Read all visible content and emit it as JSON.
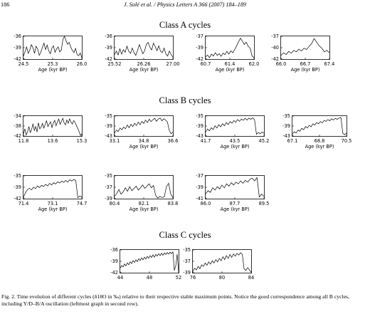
{
  "header": {
    "page_number": "186",
    "running_title": "J. Solé et al. / Physics Letters A 366 (2007) 184–189"
  },
  "sections": [
    {
      "title": "Class A cycles"
    },
    {
      "title": "Class B cycles"
    },
    {
      "title": "Class C cycles"
    }
  ],
  "caption": "Fig. 2. Time evolution of different cycles (δ18O in ‰) relative to their respective stable maximum points. Notice the good correspondence among all B cycles, including Y/D–B/A oscillation (leftmost graph in second row).",
  "chart_data": [
    {
      "type": "line",
      "class": "A",
      "xlabel": "Age (kyr BP)",
      "xticks": [
        "24.5",
        "25.3",
        "26.0"
      ],
      "yticks": [
        "-36",
        "-39",
        "-42"
      ],
      "xlim": [
        24.5,
        26.0
      ],
      "ylim": [
        -42,
        -36
      ],
      "values": [
        -41.2,
        -40,
        -38.8,
        -40.5,
        -39.6,
        -38.2,
        -39,
        -40.5,
        -38.6,
        -39.4,
        -41,
        -40.2,
        -38.9,
        -37.8,
        -39.5,
        -38.3,
        -39.8,
        -40.6,
        -39.1,
        -38.5,
        -40.2,
        -39.3,
        -38.8,
        -40.1,
        -39.6,
        -36.8,
        -35.6,
        -37.2,
        -38.1,
        -37.6,
        -38.9,
        -39.7,
        -40.3,
        -39.2,
        -40.8,
        -41.1,
        -40.4,
        -41.6
      ]
    },
    {
      "type": "line",
      "class": "A",
      "xlabel": "Age (kyr BP)",
      "xticks": [
        "25.52",
        "26.26",
        "27.00"
      ],
      "yticks": [
        "-36",
        "-39",
        "-42"
      ],
      "xlim": [
        25.52,
        27.0
      ],
      "ylim": [
        -42,
        -36
      ],
      "values": [
        -40.8,
        -39.9,
        -40.9,
        -39.3,
        -40.7,
        -39.5,
        -40.2,
        -38.6,
        -39.9,
        -40.5,
        -39.1,
        -40.3,
        -41,
        -39.7,
        -38.2,
        -39.4,
        -40.6,
        -39.8,
        -38.1,
        -37.6,
        -38.9,
        -39.6,
        -37.8,
        -38.7,
        -39.8,
        -38.5,
        -39.9,
        -40.3,
        -39.1,
        -40.6,
        -41.2,
        -39.9,
        -40.8,
        -41.5
      ]
    },
    {
      "type": "line",
      "class": "A",
      "xlabel": "Age (kyr BP)",
      "xticks": [
        "60.7",
        "61.4",
        "62.0"
      ],
      "yticks": [
        "-37",
        "-39",
        "-42"
      ],
      "xlim": [
        60.7,
        62.0
      ],
      "ylim": [
        -42,
        -37
      ],
      "values": [
        -41.5,
        -41.1,
        -41.7,
        -40.9,
        -41.3,
        -40.6,
        -41.2,
        -40.8,
        -41.4,
        -40.7,
        -41,
        -40.3,
        -40.9,
        -40.2,
        -40.6,
        -39.9,
        -39.1,
        -38.2,
        -37.4,
        -38.1,
        -38.8,
        -38.3,
        -39.2,
        -39.6,
        -41.3,
        -41.7
      ]
    },
    {
      "type": "line",
      "class": "A",
      "xlabel": "Age (kyr BP)",
      "xticks": [
        "66.0",
        "66.7",
        "67.4"
      ],
      "yticks": [
        "-37",
        "-40",
        "-42"
      ],
      "xlim": [
        66.0,
        67.4
      ],
      "ylim": [
        -42,
        -37
      ],
      "values": [
        -41.2,
        -40.6,
        -41,
        -40.3,
        -40.7,
        -40.1,
        -40.4,
        -39.8,
        -40.2,
        -39.6,
        -39.9,
        -39.2,
        -38.6,
        -37.5,
        -38.3,
        -39.1,
        -39.6,
        -40.4,
        -40.1,
        -40.6
      ]
    },
    {
      "type": "line",
      "class": "B",
      "xlabel": "",
      "xticks": [
        "11.8",
        "13.6",
        "15.3"
      ],
      "yticks": [
        "-34",
        "-38",
        "-42"
      ],
      "xlim": [
        11.8,
        15.3
      ],
      "ylim": [
        -42,
        -34
      ],
      "values": [
        -41.2,
        -39.1,
        -41.6,
        -40.3,
        -38.2,
        -40.6,
        -39.4,
        -37.1,
        -39.8,
        -38.2,
        -40.4,
        -36.7,
        -39.1,
        -38.5,
        -36.9,
        -38.8,
        -37.4,
        -35.9,
        -38.2,
        -37.1,
        -36.3,
        -38.6,
        -36.8,
        -35.7,
        -37.9,
        -36.4,
        -35.2,
        -37.3,
        -36.1,
        -34.9,
        -36.8,
        -37.5,
        -35.6,
        -36.9,
        -35.1,
        -36.4,
        -37.2,
        -35.8,
        -36.5,
        -37.8,
        -38.9,
        -40.3,
        -41.8,
        -41.1
      ]
    },
    {
      "type": "line",
      "class": "B",
      "xlabel": "Age (kyr BP)",
      "xticks": [
        "33.1",
        "34.8",
        "36.6"
      ],
      "yticks": [
        "-35",
        "-39",
        "-43"
      ],
      "xlim": [
        33.1,
        36.6
      ],
      "ylim": [
        -43,
        -35
      ],
      "values": [
        -41.8,
        -40.6,
        -41.2,
        -39.8,
        -40.5,
        -39.4,
        -40.1,
        -38.6,
        -39.7,
        -38.3,
        -39.2,
        -37.9,
        -38.8,
        -37.4,
        -38.5,
        -37.1,
        -38,
        -36.6,
        -37.6,
        -36.3,
        -37.2,
        -36.5,
        -35.9,
        -37.1,
        -36.2,
        -35.8,
        -36.9,
        -36.1,
        -36.6,
        -37.4,
        -40.8,
        -42.1,
        -41.4
      ]
    },
    {
      "type": "line",
      "class": "B",
      "xlabel": "Age (kyr BP)",
      "xticks": [
        "41.7",
        "43.5",
        "45.2"
      ],
      "yticks": [
        "-35",
        "-39",
        "-43"
      ],
      "xlim": [
        41.7,
        45.2
      ],
      "ylim": [
        -43,
        -35
      ],
      "values": [
        -41.5,
        -40.2,
        -40.9,
        -39.7,
        -40.4,
        -38.9,
        -39.8,
        -38.5,
        -39.3,
        -38.1,
        -38.9,
        -37.6,
        -38.4,
        -37.2,
        -37.9,
        -36.8,
        -37.5,
        -36.4,
        -37.1,
        -36.2,
        -36.7,
        -35.9,
        -36.6,
        -35.8,
        -36.3,
        -35.7,
        -36.5,
        -42.3,
        -41.6,
        -42.1,
        -41.4,
        -41.9
      ]
    },
    {
      "type": "line",
      "class": "B",
      "xlabel": "Age (kyr BP)",
      "xticks": [
        "67.1",
        "68.8",
        "70.5"
      ],
      "yticks": [
        "-35",
        "-39",
        "-43"
      ],
      "xlim": [
        67.1,
        70.5
      ],
      "ylim": [
        -43,
        -35
      ],
      "values": [
        -42.2,
        -41.3,
        -41.8,
        -40.6,
        -41.1,
        -39.9,
        -40.5,
        -39.2,
        -39.8,
        -38.7,
        -39.3,
        -38.1,
        -38.6,
        -37.6,
        -38.1,
        -37.2,
        -37.7,
        -36.8,
        -37.1,
        -36.4,
        -36.9,
        -36.1,
        -36.6,
        -35.9,
        -36.3,
        -35.8,
        -35.6,
        -41.9,
        -42.5,
        -41.8
      ]
    },
    {
      "type": "line",
      "class": "B",
      "xlabel": "Age (kyr BP)",
      "xticks": [
        "71.4",
        "73.1",
        "74.7"
      ],
      "yticks": [
        "-35",
        "-39",
        "-42"
      ],
      "xlim": [
        71.4,
        74.7
      ],
      "ylim": [
        -42,
        -35
      ],
      "values": [
        -41.6,
        -40.1,
        -39.2,
        -38.8,
        -39.3,
        -38.5,
        -38.9,
        -38.1,
        -38.6,
        -37.9,
        -38.3,
        -37.6,
        -38.1,
        -37.3,
        -37.8,
        -37.1,
        -37.5,
        -36.8,
        -37.2,
        -36.6,
        -37,
        -36.4,
        -36.9,
        -36.2,
        -36.6,
        -36.1,
        -36.4,
        -41.7,
        -41.2,
        -41.5
      ]
    },
    {
      "type": "line",
      "class": "B",
      "xlabel": "Age (kyr BP)",
      "xticks": [
        "80.4",
        "82.1",
        "83.8"
      ],
      "yticks": [
        "-35",
        "-37",
        "-39"
      ],
      "xlim": [
        80.4,
        83.8
      ],
      "ylim": [
        -39,
        -35
      ],
      "values": [
        -38.6,
        -38.1,
        -37.4,
        -38.2,
        -37.8,
        -37.1,
        -37.7,
        -36.9,
        -37.6,
        -37.2,
        -36.8,
        -37.5,
        -37.1,
        -36.6,
        -37.2,
        -36.8,
        -36.4,
        -37.1,
        -36.7,
        -38.4,
        -38.9,
        -38.6,
        -38.8,
        -38.7,
        -36.9,
        -36.3,
        -38.2,
        -38.8
      ]
    },
    {
      "type": "line",
      "class": "B",
      "xlabel": "Age (kyr BP)",
      "xticks": [
        "86.0",
        "87.7",
        "89.5"
      ],
      "yticks": [
        "-37",
        "-39",
        "-41"
      ],
      "xlim": [
        86.0,
        89.5
      ],
      "ylim": [
        -41,
        -37
      ],
      "values": [
        -40.2,
        -39.6,
        -39.9,
        -39.1,
        -39.5,
        -38.9,
        -39.3,
        -38.6,
        -39.1,
        -38.4,
        -38.8,
        -38.2,
        -38.6,
        -38.1,
        -38.4,
        -37.9,
        -38.3,
        -37.8,
        -38.1,
        -37.6,
        -37.4,
        -37.9,
        -37.3,
        -40.7,
        -40.2,
        -40.6
      ]
    },
    {
      "type": "line",
      "class": "C",
      "xlabel": "",
      "xticks": [
        "44",
        "48",
        "52"
      ],
      "yticks": [
        "-36",
        "-39",
        "-42"
      ],
      "xlim": [
        44,
        52
      ],
      "ylim": [
        -42,
        -36
      ],
      "values": [
        -40.8,
        -40.1,
        -40.5,
        -39.7,
        -40.2,
        -39.4,
        -39.9,
        -39.1,
        -39.6,
        -38.8,
        -39.3,
        -38.6,
        -39.1,
        -38.3,
        -38.8,
        -38.1,
        -38.6,
        -37.9,
        -38.4,
        -37.7,
        -38.2,
        -37.5,
        -38,
        -37.3,
        -37.9,
        -37.2,
        -37.6,
        -37,
        -37.5,
        -36.9,
        -37.4,
        -36.8,
        -37.2,
        -36.7,
        -37.1,
        -36.6,
        -37,
        -36.5,
        -41.4,
        -40.2,
        -37.1,
        -41.7
      ]
    },
    {
      "type": "line",
      "class": "C",
      "xlabel": "",
      "xticks": [
        "76",
        "80",
        "84"
      ],
      "yticks": [
        "-35",
        "-37",
        "-39"
      ],
      "xlim": [
        76,
        84
      ],
      "ylim": [
        -39,
        -35
      ],
      "values": [
        -38.8,
        -38.2,
        -38.5,
        -37.9,
        -38.3,
        -37.6,
        -37.9,
        -37.3,
        -37.7,
        -37.1,
        -37.5,
        -36.9,
        -37.3,
        -36.7,
        -37.1,
        -36.5,
        -36.9,
        -36.2,
        -36.7,
        -36,
        -36.5,
        -35.8,
        -36.3,
        -35.7,
        -36.1,
        -35.6,
        -35.9,
        -35.5,
        -35.8,
        -38.3,
        -38.6,
        -38.1,
        -38.5,
        -38.9
      ]
    }
  ]
}
